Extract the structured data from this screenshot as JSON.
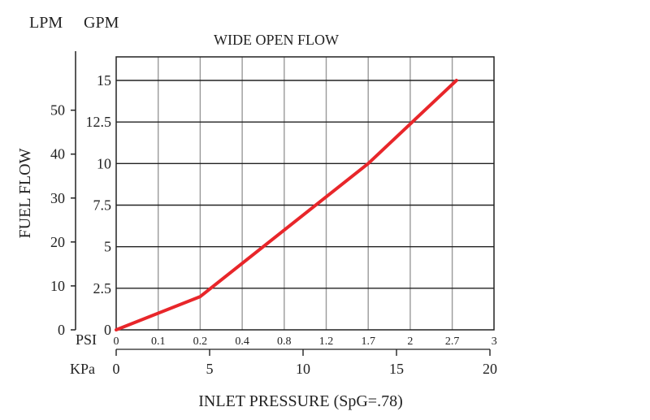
{
  "chart_data": {
    "type": "line",
    "title": "WIDE OPEN FLOW",
    "ylabel": "FUEL FLOW",
    "xlabel": "INLET PRESSURE (SpG=.78)",
    "unit_labels": {
      "lpm": "LPM",
      "gpm": "GPM",
      "psi": "PSI",
      "kpa": "KPa"
    },
    "gpm_axis": {
      "ylim": [
        0,
        15
      ],
      "ticks": [
        "0",
        "2.5",
        "5",
        "7.5",
        "10",
        "12.5",
        "15"
      ]
    },
    "lpm_axis": {
      "ticks": [
        "0",
        "10",
        "20",
        "30",
        "40",
        "50"
      ]
    },
    "psi_axis": {
      "ticks": [
        "0",
        "0.1",
        "0.2",
        "0.4",
        "0.8",
        "1.2",
        "1.7",
        "2",
        "2.7",
        "3"
      ]
    },
    "kpa_axis": {
      "ticks": [
        "0",
        "5",
        "10",
        "15",
        "20"
      ]
    },
    "grid": true,
    "series": [
      {
        "color": "#e8262a",
        "points": [
          {
            "psi_index": 0,
            "gpm": 0
          },
          {
            "psi_index": 2,
            "gpm": 2
          },
          {
            "psi_index": 6,
            "gpm": 10
          },
          {
            "psi_index": 8.1,
            "gpm": 15
          }
        ]
      }
    ]
  }
}
